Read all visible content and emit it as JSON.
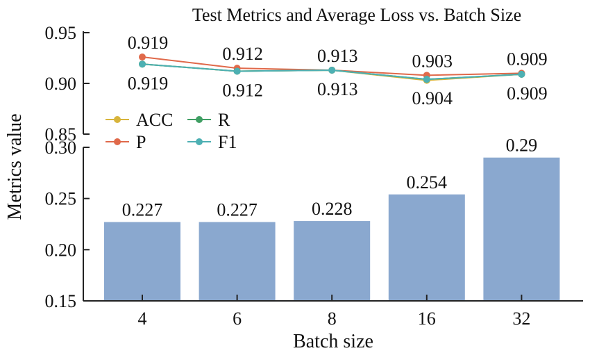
{
  "chart_data": {
    "type": "bar+line",
    "title": "Test Metrics and Average Loss vs. Batch Size",
    "xlabel": "Batch size",
    "ylabel": "Metrics value",
    "categories": [
      "4",
      "6",
      "8",
      "16",
      "32"
    ],
    "top_panel": {
      "type": "line",
      "ylim": [
        0.85,
        0.95
      ],
      "yticks": [
        "0.85",
        "0.90",
        "0.95"
      ],
      "series": [
        {
          "name": "ACC",
          "color": "#d8b43b",
          "values": [
            0.919,
            0.912,
            0.913,
            0.903,
            0.909
          ]
        },
        {
          "name": "P",
          "color": "#e0694a",
          "values": [
            0.926,
            0.915,
            0.913,
            0.908,
            0.91
          ]
        },
        {
          "name": "R",
          "color": "#3f9e63",
          "values": [
            0.919,
            0.912,
            0.913,
            0.904,
            0.909
          ]
        },
        {
          "name": "F1",
          "color": "#4db0b3",
          "values": [
            0.919,
            0.912,
            0.913,
            0.904,
            0.909
          ]
        }
      ],
      "labels_above": [
        "0.919",
        "0.912",
        "0.913",
        "0.903",
        "0.909"
      ],
      "labels_below": [
        "0.919",
        "0.912",
        "0.913",
        "0.904",
        "0.909"
      ],
      "legend": [
        "ACC",
        "R",
        "P",
        "F1"
      ],
      "legend_position": "lower-left"
    },
    "bottom_panel": {
      "type": "bar",
      "color": "#8aa8cf",
      "ylim": [
        0.15,
        0.3
      ],
      "yticks": [
        "0.15",
        "0.20",
        "0.25",
        "0.30"
      ],
      "values": [
        0.227,
        0.227,
        0.228,
        0.254,
        0.29
      ],
      "labels": [
        "0.227",
        "0.227",
        "0.228",
        "0.254",
        "0.29"
      ]
    }
  }
}
